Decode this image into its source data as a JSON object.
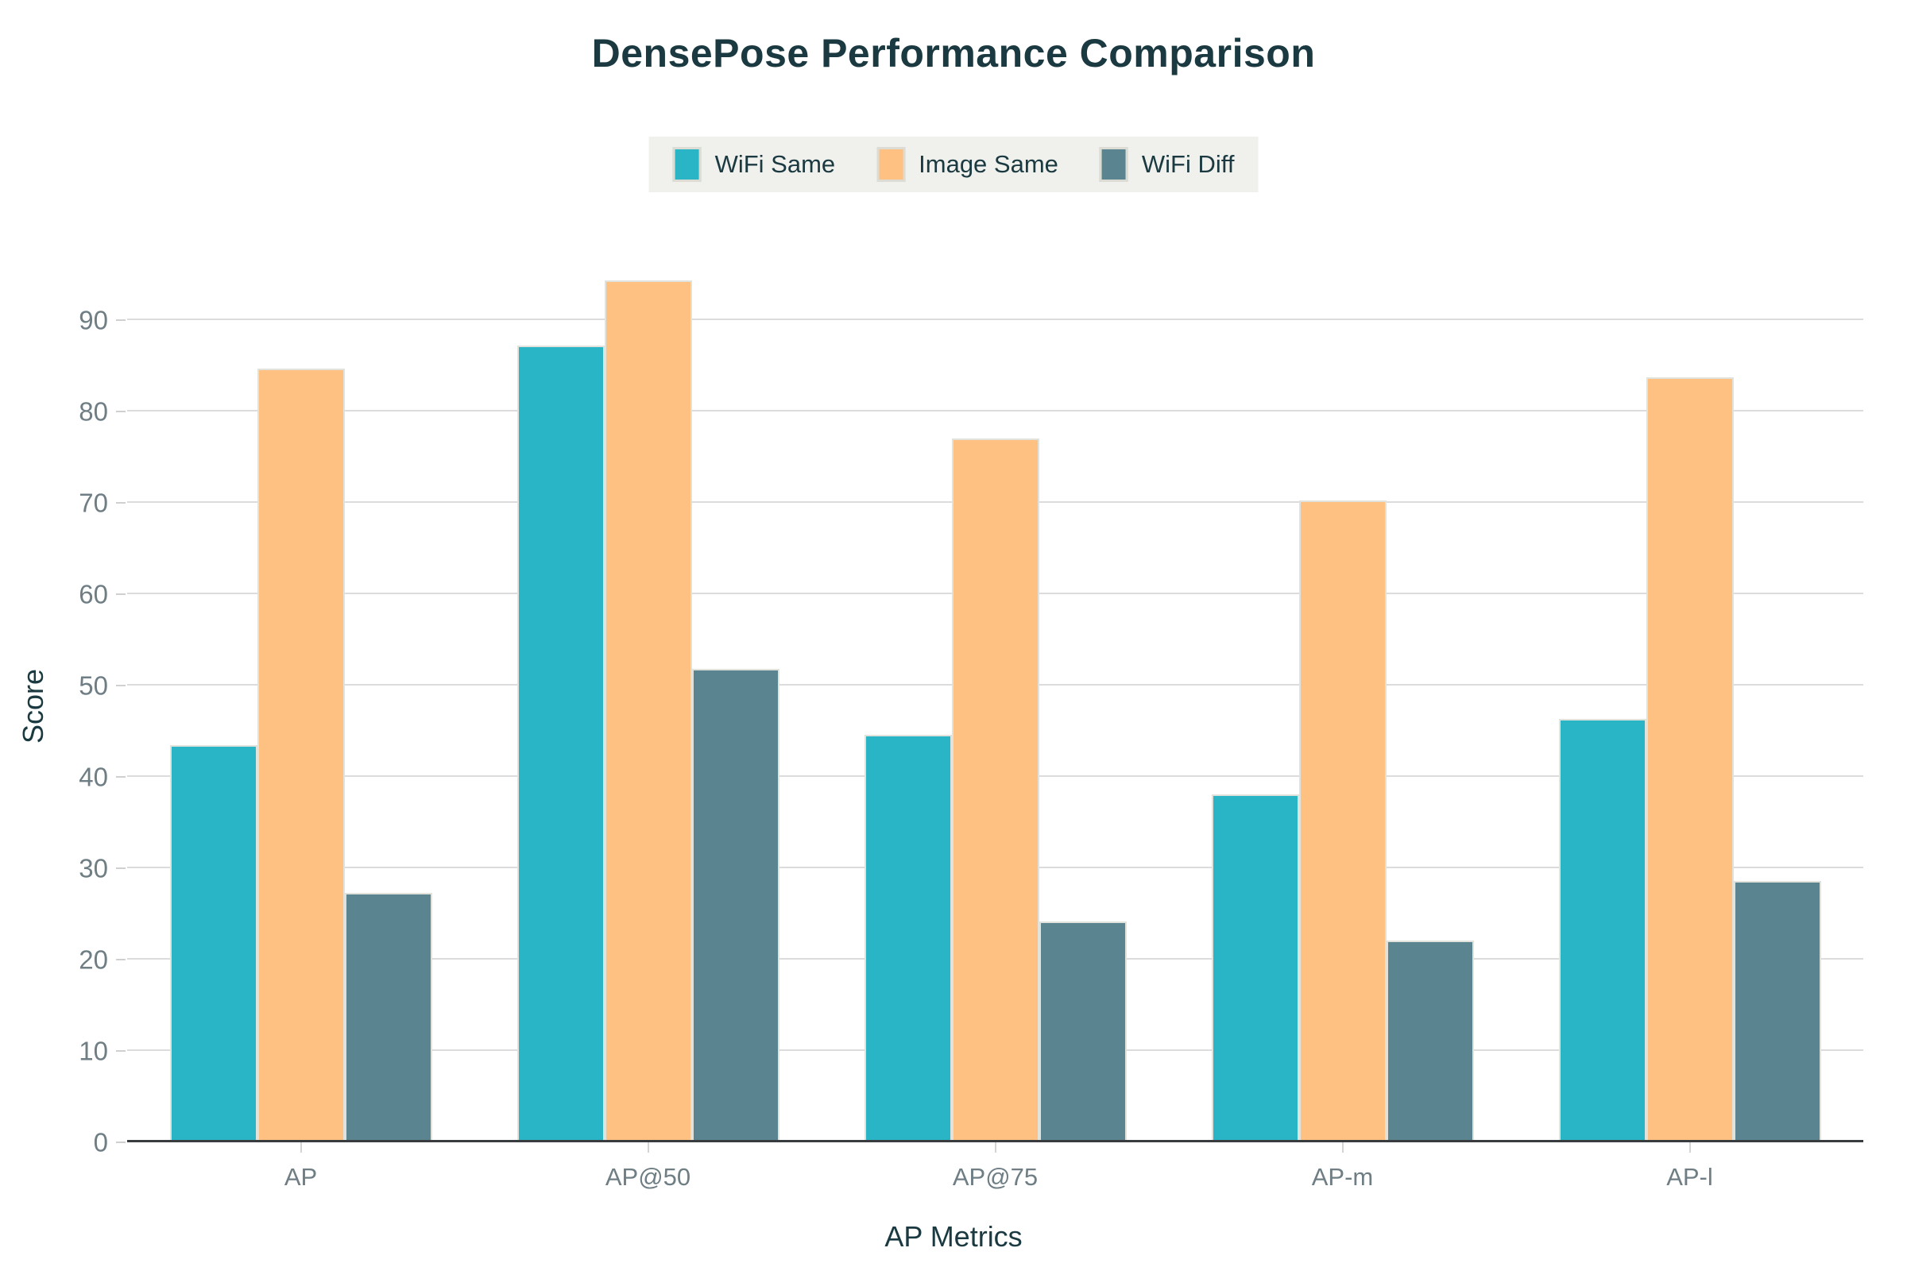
{
  "title": "DensePose Performance Comparison",
  "chart_data": {
    "type": "bar",
    "title": "DensePose Performance Comparison",
    "xlabel": "AP Metrics",
    "ylabel": "Score",
    "categories": [
      "AP",
      "AP@50",
      "AP@75",
      "AP-m",
      "AP-l"
    ],
    "series": [
      {
        "name": "WiFi Same",
        "color": "#29b5c6",
        "values": [
          43.5,
          87.2,
          44.6,
          38.1,
          46.4
        ]
      },
      {
        "name": "Image Same",
        "color": "#fec182",
        "values": [
          84.7,
          94.4,
          77.1,
          70.3,
          83.8
        ]
      },
      {
        "name": "WiFi Diff",
        "color": "#5a8590",
        "values": [
          27.3,
          51.8,
          24.2,
          22.1,
          28.6
        ]
      }
    ],
    "ylim": [
      0,
      95.5
    ],
    "yticks": [
      0,
      10,
      20,
      30,
      40,
      50,
      60,
      70,
      80,
      90
    ],
    "grid": true,
    "legend_position": "top-center"
  },
  "colors": {
    "background": "#ffffff",
    "legend_background": "#f0f1ec",
    "title_text": "#1a3940",
    "tick_text": "#6e7e84",
    "gridline": "#dcdcdc",
    "axis_line": "#393c3e",
    "bar_edge": "#e2e2dd"
  }
}
